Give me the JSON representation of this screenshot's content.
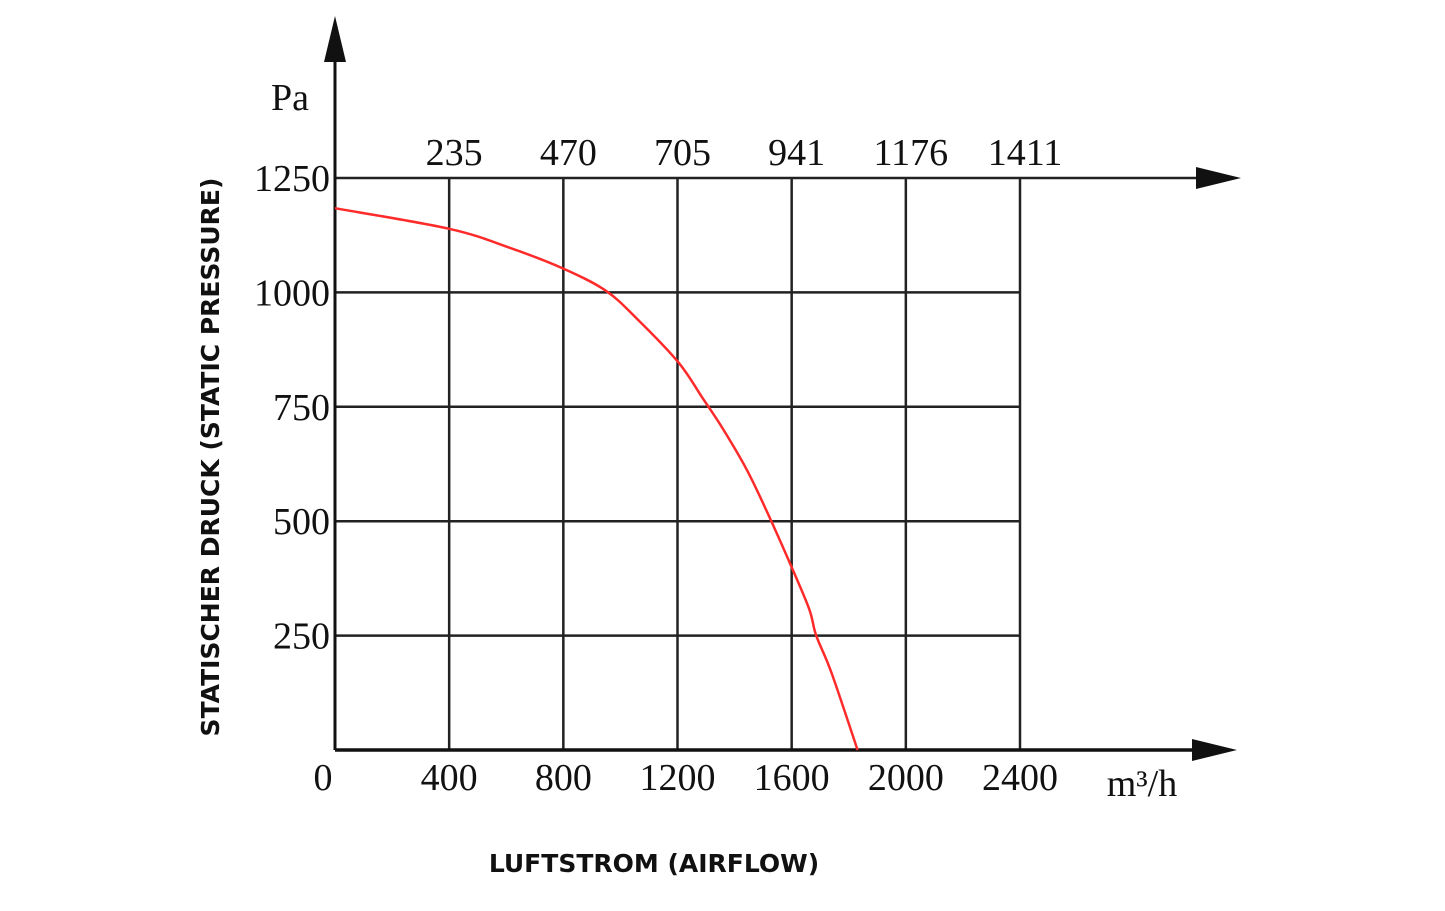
{
  "chart_data": {
    "type": "line",
    "title": "",
    "xlabel": "LUFTSTROM (AIRFLOW)",
    "ylabel": "STATISCHER DRUCK (STATIC PRESSURE)",
    "x_unit": "m³/h",
    "y_unit": "Pa",
    "xlim": [
      0,
      2400
    ],
    "ylim": [
      0,
      1250
    ],
    "grid": true,
    "x_ticks": [
      "0",
      "400",
      "800",
      "1200",
      "1600",
      "2000",
      "2400"
    ],
    "x_tick_values": [
      0,
      400,
      800,
      1200,
      1600,
      2000,
      2400
    ],
    "top_ticks": [
      "235",
      "470",
      "705",
      "941",
      "1176",
      "1411"
    ],
    "y_ticks": [
      "250",
      "500",
      "750",
      "1000",
      "1250"
    ],
    "y_tick_values": [
      250,
      500,
      750,
      1000,
      1250
    ],
    "series": [
      {
        "name": "static pressure curve",
        "color": "#ff2a2a",
        "x": [
          0,
          400,
          610,
          800,
          948,
          1057,
          1202,
          1287,
          1360,
          1444,
          1517,
          1601,
          1662,
          1686,
          1740,
          1831
        ],
        "y": [
          1184,
          1139,
          1098,
          1052,
          1004,
          943,
          848,
          770,
          701,
          611,
          516,
          398,
          307,
          250,
          168,
          0
        ]
      }
    ]
  }
}
